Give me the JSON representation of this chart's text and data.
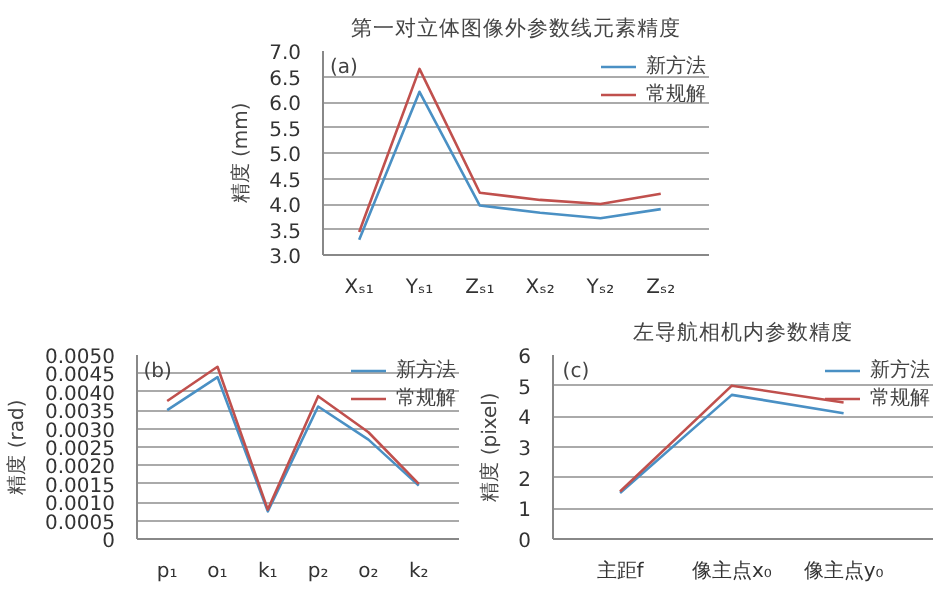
{
  "chart_data": [
    {
      "type": "line",
      "title": "第一对立体图像外参数线元素精度",
      "ylabel": "精度 (mm)",
      "annotations": [
        "(a)"
      ],
      "categories": [
        "Xₛ₁",
        "Yₛ₁",
        "Zₛ₁",
        "Xₛ₂",
        "Yₛ₂",
        "Zₛ₂"
      ],
      "series": [
        {
          "name": "新方法",
          "color": "#4a90c4",
          "values": [
            3.3,
            6.2,
            3.97,
            3.83,
            3.72,
            3.9
          ]
        },
        {
          "name": "常规解",
          "color": "#c0504d",
          "values": [
            3.45,
            6.65,
            4.22,
            4.08,
            4.0,
            4.2
          ]
        }
      ],
      "ylim": [
        3.0,
        7.0
      ],
      "yticks": [
        {
          "value": 3,
          "label": "3.0"
        },
        3.5,
        {
          "value": 4,
          "label": "4.0"
        },
        4.5,
        {
          "value": 5,
          "label": "5.0"
        },
        5.5,
        {
          "value": 6,
          "label": "6.0"
        },
        6.5,
        {
          "value": 7,
          "label": "7.0"
        }
      ],
      "grid": "y",
      "legend": "top right"
    },
    {
      "type": "line",
      "ylabel": "精度 (rad)",
      "annotations": [
        "(b)"
      ],
      "categories": [
        "p₁",
        "o₁",
        "k₁",
        "p₂",
        "o₂",
        "k₂"
      ],
      "series": [
        {
          "name": "新方法",
          "color": "#4a90c4",
          "values": [
            0.0035,
            0.0044,
            0.00075,
            0.0036,
            0.0027,
            0.00145
          ]
        },
        {
          "name": "常规解",
          "color": "#c0504d",
          "values": [
            0.00375,
            0.00468,
            0.0008,
            0.00388,
            0.0029,
            0.0015
          ]
        }
      ],
      "ylim": [
        0,
        0.005
      ],
      "yticks": [
        0,
        {
          "value": 0.0005,
          "label": "0.0005"
        },
        {
          "value": 0.001,
          "label": "0.0010"
        },
        {
          "value": 0.0015,
          "label": "0.0015"
        },
        {
          "value": 0.002,
          "label": "0.0020"
        },
        {
          "value": 0.0025,
          "label": "0.0025"
        },
        {
          "value": 0.003,
          "label": "0.0030"
        },
        {
          "value": 0.0035,
          "label": "0.0035"
        },
        {
          "value": 0.004,
          "label": "0.0040"
        },
        {
          "value": 0.0045,
          "label": "0.0045"
        },
        {
          "value": 0.005,
          "label": "0.0050"
        }
      ],
      "grid": "y",
      "legend": "top right"
    },
    {
      "type": "line",
      "title": "左导航相机内参数精度",
      "ylabel": "精度 (pixel)",
      "annotations": [
        "(c)"
      ],
      "categories": [
        "主距f",
        "像主点x₀",
        "像主点y₀"
      ],
      "series": [
        {
          "name": "新方法",
          "color": "#4a90c4",
          "values": [
            1.5,
            4.7,
            4.1
          ]
        },
        {
          "name": "常规解",
          "color": "#c0504d",
          "values": [
            1.55,
            5.0,
            4.45
          ]
        }
      ],
      "ylim": [
        0,
        6
      ],
      "yticks": [
        0,
        1,
        2,
        3,
        4,
        5,
        6
      ],
      "grid": "y",
      "legend": "top right"
    }
  ]
}
